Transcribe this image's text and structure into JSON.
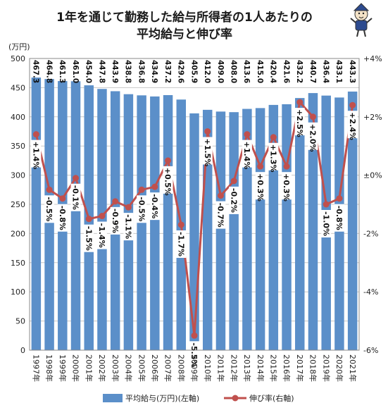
{
  "title_line1": "1年を通じて勤務した給与所得者の1人あたりの",
  "title_line2": "平均給与と伸び率",
  "left_unit": "(万円)",
  "colors": {
    "bar": "#5b8fc9",
    "line": "#c0504d",
    "grid": "#c8c8c8",
    "label_bg": "#ffffff"
  },
  "icon": "mascot-character-icon",
  "chart_data": {
    "type": "bar",
    "categories": [
      "1997年",
      "1998年",
      "1999年",
      "2000年",
      "2001年",
      "2002年",
      "2003年",
      "2004年",
      "2005年",
      "2006年",
      "2007年",
      "2008年",
      "2009年",
      "2010年",
      "2011年",
      "2012年",
      "2013年",
      "2014年",
      "2015年",
      "2016年",
      "2017年",
      "2018年",
      "2019年",
      "2020年",
      "2021年"
    ],
    "series": [
      {
        "name": "平均給与(万円)(左軸)",
        "type": "bar",
        "axis": "left",
        "values": [
          467.3,
          464.8,
          461.3,
          461.0,
          454.0,
          447.8,
          443.9,
          438.8,
          436.8,
          434.9,
          437.2,
          429.6,
          405.9,
          412.0,
          409.0,
          408.0,
          413.6,
          415.0,
          420.4,
          421.6,
          432.2,
          440.7,
          436.4,
          433.1,
          443.3
        ],
        "labels": [
          "467.3",
          "464.8",
          "461.3",
          "461.0",
          "454.0",
          "447.8",
          "443.9",
          "438.8",
          "436.8",
          "434.9",
          "437.2",
          "429.6",
          "405.9",
          "412.0",
          "409.0",
          "408.0",
          "413.6",
          "415.0",
          "420.4",
          "421.6",
          "432.2",
          "440.7",
          "436.4",
          "433.1",
          "443.3"
        ]
      },
      {
        "name": "伸び率(右軸)",
        "type": "line",
        "axis": "right",
        "values": [
          1.4,
          -0.5,
          -0.8,
          -0.1,
          -1.5,
          -1.4,
          -0.9,
          -1.1,
          -0.5,
          -0.4,
          0.5,
          -1.7,
          -5.5,
          1.5,
          -0.7,
          -0.2,
          1.4,
          0.3,
          1.3,
          0.3,
          2.5,
          2.0,
          -1.0,
          -0.8,
          2.4
        ],
        "labels": [
          "+1.4%",
          "-0.5%",
          "-0.8%",
          "-0.1%",
          "-1.5%",
          "-1.4%",
          "-0.9%",
          "-1.1%",
          "-0.5%",
          "-0.4%",
          "+0.5%",
          "-1.7%",
          "-5.5%",
          "+1.5%",
          "-0.7%",
          "-0.2%",
          "+1.4%",
          "+0.3%",
          "+1.3%",
          "+0.3%",
          "+2.5%",
          "+2.0%",
          "-1.0%",
          "-0.8%",
          "+2.4%"
        ]
      }
    ],
    "y_left": {
      "min": 0,
      "max": 500,
      "step": 50,
      "ticks": [
        "0",
        "50",
        "100",
        "150",
        "200",
        "250",
        "300",
        "350",
        "400",
        "450",
        "500"
      ]
    },
    "y_right": {
      "min": -6,
      "max": 4,
      "step": 2,
      "ticks": [
        "-6%",
        "-4%",
        "-2%",
        "±0%",
        "+2%",
        "+4%"
      ]
    },
    "grid": true,
    "legend_position": "bottom"
  }
}
